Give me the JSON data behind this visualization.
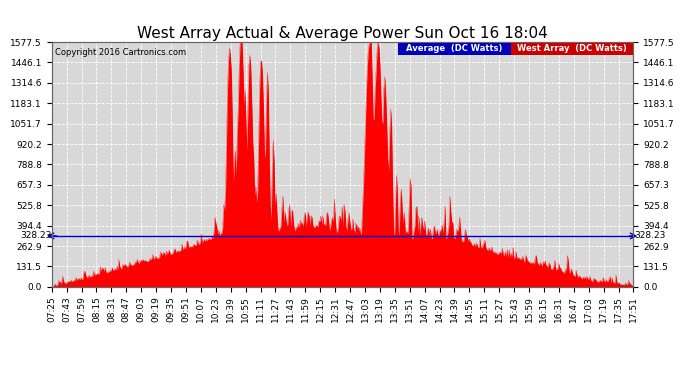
{
  "title": "West Array Actual & Average Power Sun Oct 16 18:04",
  "copyright": "Copyright 2016 Cartronics.com",
  "avg_label": "Average  (DC Watts)",
  "west_label": "West Array  (DC Watts)",
  "average_value": 328.23,
  "yticks": [
    0.0,
    131.5,
    262.9,
    394.4,
    525.8,
    657.3,
    788.8,
    920.2,
    1051.7,
    1183.1,
    1314.6,
    1446.1,
    1577.5
  ],
  "ymax": 1577.5,
  "ymin": 0.0,
  "bg_color": "#ffffff",
  "plot_bg_color": "#d8d8d8",
  "grid_color": "#ffffff",
  "fill_color": "#ff0000",
  "line_color": "#ff0000",
  "avg_line_color": "#0000cc",
  "avg_label_bg": "#0000bb",
  "west_label_bg": "#cc0000",
  "title_fontsize": 11,
  "tick_fontsize": 6.5,
  "x_tick_labels": [
    "07:25",
    "07:43",
    "07:59",
    "08:15",
    "08:31",
    "08:47",
    "09:03",
    "09:19",
    "09:35",
    "09:51",
    "10:07",
    "10:23",
    "10:39",
    "10:55",
    "11:11",
    "11:27",
    "11:43",
    "11:59",
    "12:15",
    "12:31",
    "12:47",
    "13:03",
    "13:19",
    "13:35",
    "13:51",
    "14:07",
    "14:23",
    "14:39",
    "14:55",
    "15:11",
    "15:27",
    "15:43",
    "15:59",
    "16:15",
    "16:31",
    "16:47",
    "17:03",
    "17:19",
    "17:35",
    "17:51"
  ],
  "n_points": 600,
  "seed": 42
}
